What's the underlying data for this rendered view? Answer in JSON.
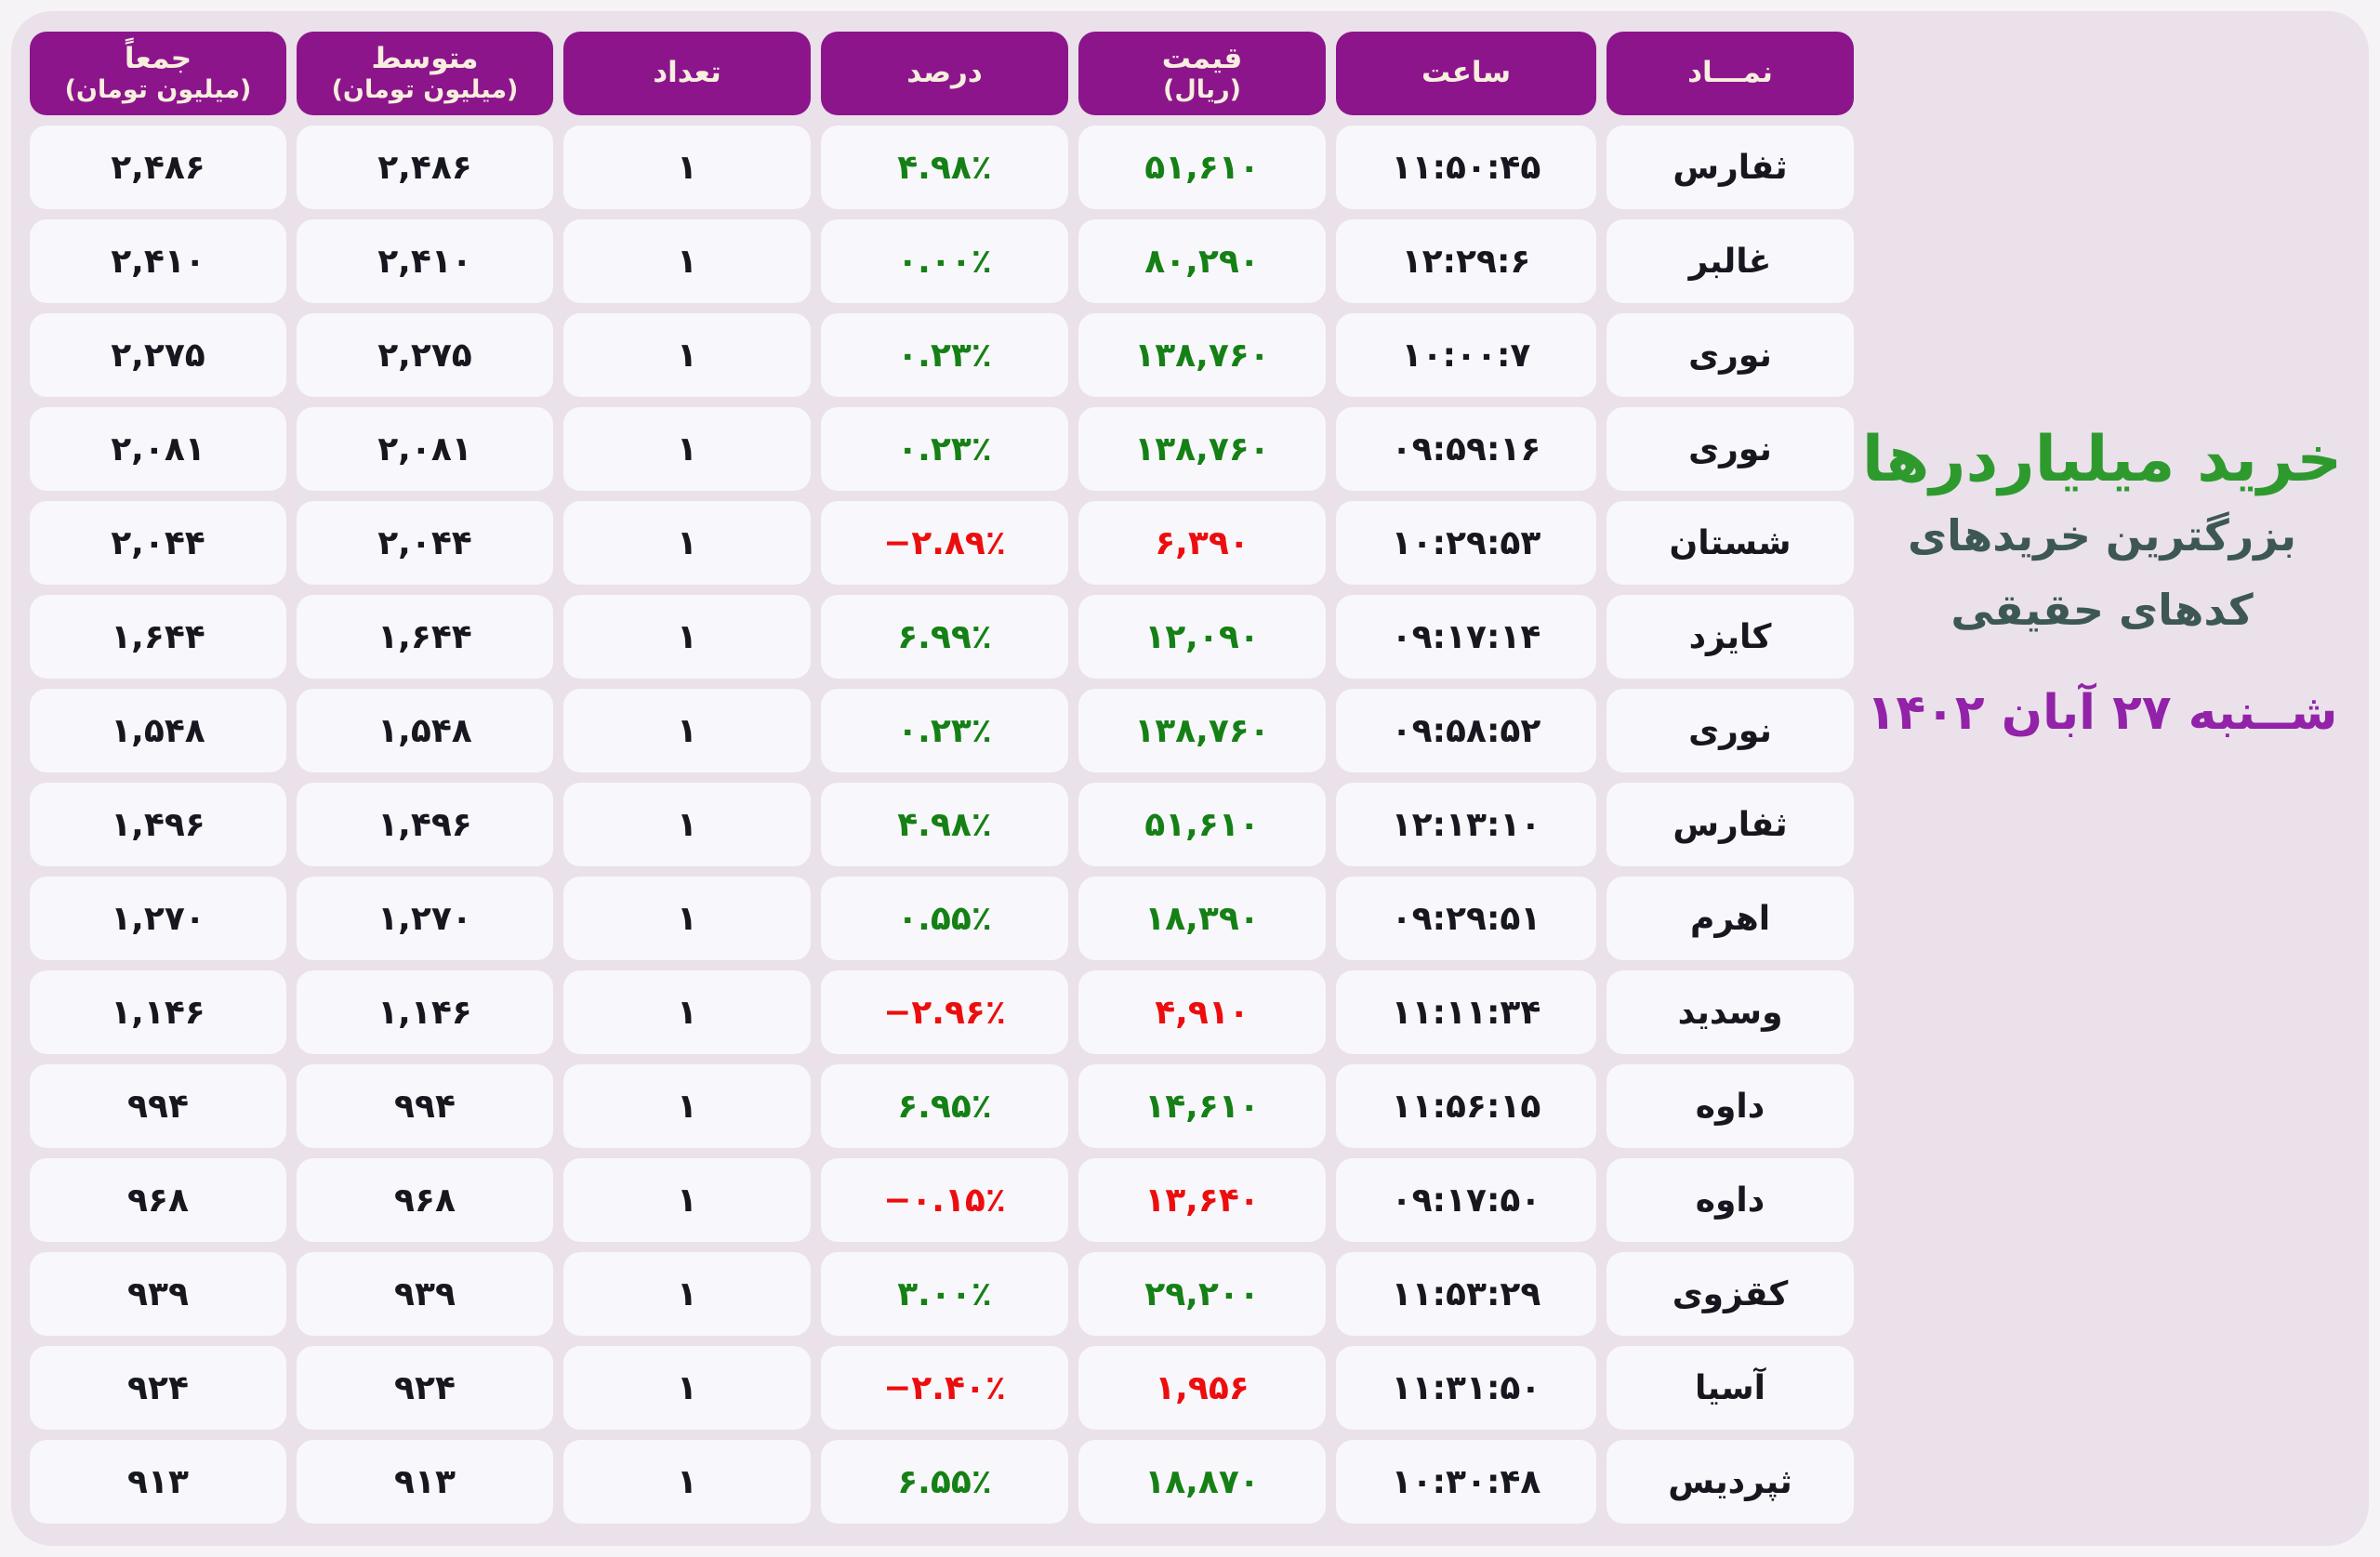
{
  "title": {
    "main": "خرید میلیاردرها",
    "subtitle_line1": "بزرگترین خریدهای",
    "subtitle_line2": "کدهای حقیقی",
    "date": "شــنبه ۲۷ آبان ۱۴۰۲"
  },
  "colors": {
    "header_bg": "#8c158c",
    "header_text": "#f7eedd",
    "positive": "#15801f",
    "negative": "#ec0e0e",
    "title_green": "#2e9a2e",
    "subtitle": "#3d5757",
    "date": "#9222a8",
    "board_bg": "#eae1ea",
    "cell_bg": "#f8f7fb"
  },
  "table": {
    "columns": [
      {
        "key": "symbol",
        "label": "نمـــاد",
        "sub": ""
      },
      {
        "key": "time",
        "label": "ساعت",
        "sub": ""
      },
      {
        "key": "price",
        "label": "قیمت",
        "sub": "(ریال)"
      },
      {
        "key": "percent",
        "label": "درصد",
        "sub": ""
      },
      {
        "key": "count",
        "label": "تعداد",
        "sub": ""
      },
      {
        "key": "average",
        "label": "متوسط",
        "sub": "(میلیون تومان)"
      },
      {
        "key": "total",
        "label": "جمعاً",
        "sub": "(میلیون تومان)"
      }
    ],
    "rows": [
      {
        "symbol": "ثفارس",
        "time": "۱۱:۵۰:۴۵",
        "price": "۵۱,۶۱۰",
        "price_color": "green",
        "percent": "۴.۹۸٪",
        "percent_color": "green",
        "count": "۱",
        "average": "۲,۴۸۶",
        "total": "۲,۴۸۶"
      },
      {
        "symbol": "غالبر",
        "time": "۱۲:۲۹:۶",
        "price": "۸۰,۲۹۰",
        "price_color": "green",
        "percent": "۰.۰۰٪",
        "percent_color": "green",
        "count": "۱",
        "average": "۲,۴۱۰",
        "total": "۲,۴۱۰"
      },
      {
        "symbol": "نوری",
        "time": "۱۰:۰۰:۷",
        "price": "۱۳۸,۷۶۰",
        "price_color": "green",
        "percent": "۰.۲۳٪",
        "percent_color": "green",
        "count": "۱",
        "average": "۲,۲۷۵",
        "total": "۲,۲۷۵"
      },
      {
        "symbol": "نوری",
        "time": "۰۹:۵۹:۱۶",
        "price": "۱۳۸,۷۶۰",
        "price_color": "green",
        "percent": "۰.۲۳٪",
        "percent_color": "green",
        "count": "۱",
        "average": "۲,۰۸۱",
        "total": "۲,۰۸۱"
      },
      {
        "symbol": "شستان",
        "time": "۱۰:۲۹:۵۳",
        "price": "۶,۳۹۰",
        "price_color": "red",
        "percent": "−۲.۸۹٪",
        "percent_color": "red",
        "count": "۱",
        "average": "۲,۰۴۴",
        "total": "۲,۰۴۴"
      },
      {
        "symbol": "کایزد",
        "time": "۰۹:۱۷:۱۴",
        "price": "۱۲,۰۹۰",
        "price_color": "green",
        "percent": "۶.۹۹٪",
        "percent_color": "green",
        "count": "۱",
        "average": "۱,۶۴۴",
        "total": "۱,۶۴۴"
      },
      {
        "symbol": "نوری",
        "time": "۰۹:۵۸:۵۲",
        "price": "۱۳۸,۷۶۰",
        "price_color": "green",
        "percent": "۰.۲۳٪",
        "percent_color": "green",
        "count": "۱",
        "average": "۱,۵۴۸",
        "total": "۱,۵۴۸"
      },
      {
        "symbol": "ثفارس",
        "time": "۱۲:۱۳:۱۰",
        "price": "۵۱,۶۱۰",
        "price_color": "green",
        "percent": "۴.۹۸٪",
        "percent_color": "green",
        "count": "۱",
        "average": "۱,۴۹۶",
        "total": "۱,۴۹۶"
      },
      {
        "symbol": "اهرم",
        "time": "۰۹:۲۹:۵۱",
        "price": "۱۸,۳۹۰",
        "price_color": "green",
        "percent": "۰.۵۵٪",
        "percent_color": "green",
        "count": "۱",
        "average": "۱,۲۷۰",
        "total": "۱,۲۷۰"
      },
      {
        "symbol": "وسدید",
        "time": "۱۱:۱۱:۳۴",
        "price": "۴,۹۱۰",
        "price_color": "red",
        "percent": "−۲.۹۶٪",
        "percent_color": "red",
        "count": "۱",
        "average": "۱,۱۴۶",
        "total": "۱,۱۴۶"
      },
      {
        "symbol": "داوه",
        "time": "۱۱:۵۶:۱۵",
        "price": "۱۴,۶۱۰",
        "price_color": "green",
        "percent": "۶.۹۵٪",
        "percent_color": "green",
        "count": "۱",
        "average": "۹۹۴",
        "total": "۹۹۴"
      },
      {
        "symbol": "داوه",
        "time": "۰۹:۱۷:۵۰",
        "price": "۱۳,۶۴۰",
        "price_color": "red",
        "percent": "−۰.۱۵٪",
        "percent_color": "red",
        "count": "۱",
        "average": "۹۶۸",
        "total": "۹۶۸"
      },
      {
        "symbol": "کقزوی",
        "time": "۱۱:۵۳:۲۹",
        "price": "۲۹,۲۰۰",
        "price_color": "green",
        "percent": "۳.۰۰٪",
        "percent_color": "green",
        "count": "۱",
        "average": "۹۳۹",
        "total": "۹۳۹"
      },
      {
        "symbol": "آسیا",
        "time": "۱۱:۳۱:۵۰",
        "price": "۱,۹۵۶",
        "price_color": "red",
        "percent": "−۲.۴۰٪",
        "percent_color": "red",
        "count": "۱",
        "average": "۹۲۴",
        "total": "۹۲۴"
      },
      {
        "symbol": "ثپردیس",
        "time": "۱۰:۳۰:۴۸",
        "price": "۱۸,۸۷۰",
        "price_color": "green",
        "percent": "۶.۵۵٪",
        "percent_color": "green",
        "count": "۱",
        "average": "۹۱۳",
        "total": "۹۱۳"
      }
    ]
  },
  "chart_data": {
    "type": "table",
    "title": "خرید میلیاردرها — بزرگترین خریدهای کدهای حقیقی",
    "date": "شنبه ۲۷ آبان ۱۴۰۲",
    "columns": [
      "نماد",
      "ساعت",
      "قیمت (ریال)",
      "درصد",
      "تعداد",
      "متوسط (میلیون تومان)",
      "جمعاً (میلیون تومان)"
    ],
    "rows": [
      {
        "symbol": "ثفارس",
        "time": "11:50:45",
        "price_rial": 51610,
        "percent": 4.98,
        "count": 1,
        "average_mtoman": 2486,
        "total_mtoman": 2486
      },
      {
        "symbol": "غالبر",
        "time": "12:29:6",
        "price_rial": 80290,
        "percent": 0.0,
        "count": 1,
        "average_mtoman": 2410,
        "total_mtoman": 2410
      },
      {
        "symbol": "نوری",
        "time": "10:00:7",
        "price_rial": 138760,
        "percent": 0.23,
        "count": 1,
        "average_mtoman": 2275,
        "total_mtoman": 2275
      },
      {
        "symbol": "نوری",
        "time": "09:59:16",
        "price_rial": 138760,
        "percent": 0.23,
        "count": 1,
        "average_mtoman": 2081,
        "total_mtoman": 2081
      },
      {
        "symbol": "شستان",
        "time": "10:29:53",
        "price_rial": 6390,
        "percent": -2.89,
        "count": 1,
        "average_mtoman": 2044,
        "total_mtoman": 2044
      },
      {
        "symbol": "کایزد",
        "time": "09:17:14",
        "price_rial": 12090,
        "percent": 6.99,
        "count": 1,
        "average_mtoman": 1644,
        "total_mtoman": 1644
      },
      {
        "symbol": "نوری",
        "time": "09:58:52",
        "price_rial": 138760,
        "percent": 0.23,
        "count": 1,
        "average_mtoman": 1548,
        "total_mtoman": 1548
      },
      {
        "symbol": "ثفارس",
        "time": "12:13:10",
        "price_rial": 51610,
        "percent": 4.98,
        "count": 1,
        "average_mtoman": 1496,
        "total_mtoman": 1496
      },
      {
        "symbol": "اهرم",
        "time": "09:29:51",
        "price_rial": 18390,
        "percent": 0.55,
        "count": 1,
        "average_mtoman": 1270,
        "total_mtoman": 1270
      },
      {
        "symbol": "وسدید",
        "time": "11:11:34",
        "price_rial": 4910,
        "percent": -2.96,
        "count": 1,
        "average_mtoman": 1146,
        "total_mtoman": 1146
      },
      {
        "symbol": "داوه",
        "time": "11:56:15",
        "price_rial": 14610,
        "percent": 6.95,
        "count": 1,
        "average_mtoman": 994,
        "total_mtoman": 994
      },
      {
        "symbol": "داوه",
        "time": "09:17:50",
        "price_rial": 13640,
        "percent": -0.15,
        "count": 1,
        "average_mtoman": 968,
        "total_mtoman": 968
      },
      {
        "symbol": "کقزوی",
        "time": "11:53:29",
        "price_rial": 29200,
        "percent": 3.0,
        "count": 1,
        "average_mtoman": 939,
        "total_mtoman": 939
      },
      {
        "symbol": "آسیا",
        "time": "11:31:50",
        "price_rial": 1956,
        "percent": -2.4,
        "count": 1,
        "average_mtoman": 924,
        "total_mtoman": 924
      },
      {
        "symbol": "ثپردیس",
        "time": "10:30:48",
        "price_rial": 18870,
        "percent": 6.55,
        "count": 1,
        "average_mtoman": 913,
        "total_mtoman": 913
      }
    ],
    "legend_position": "none",
    "grid": false
  }
}
